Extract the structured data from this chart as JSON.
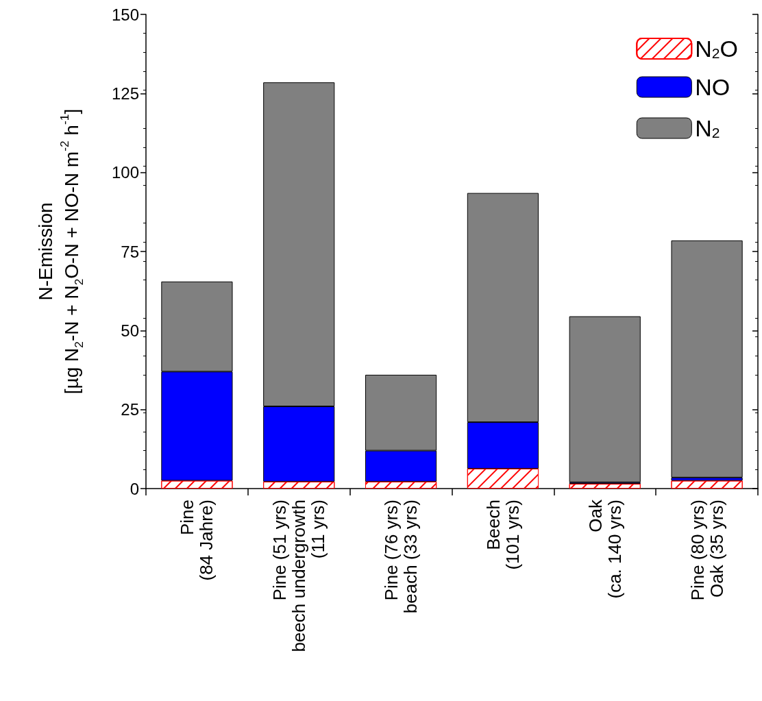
{
  "chart_data": {
    "type": "bar",
    "stacked": true,
    "ylabel": "N-Emission\n[µg N$_{2}$-N + N$_{2}$O-N + NO-N m$^{-2}$ h$^{-1}$]",
    "categories": [
      "Pine\n(84 Jahre)",
      "Pine (51 yrs)\nbeech undergrowth\n(11 yrs)",
      "Pine (76 yrs)\nbeach (33 yrs)",
      "Beech\n(101 yrs)",
      "Oak\n(ca. 140 yrs)",
      "Pine (80 yrs)\nOak (35 yrs)"
    ],
    "series": [
      {
        "name": "N$_{2}$O",
        "color": "#ff0000",
        "values": [
          2.5,
          2.2,
          2.2,
          6.3,
          1.5,
          2.5
        ]
      },
      {
        "name": "NO",
        "color": "#0000ff",
        "values": [
          34.5,
          23.8,
          9.8,
          14.7,
          0.5,
          1
        ]
      },
      {
        "name": "N$_{2}$",
        "color": "#808080",
        "values": [
          28.5,
          102.5,
          24,
          72.5,
          52.5,
          75
        ]
      }
    ],
    "ylim": [
      0,
      150
    ],
    "yticks": [
      0,
      25,
      50,
      75,
      100,
      125,
      150
    ],
    "grid": false,
    "legend": "top right"
  }
}
